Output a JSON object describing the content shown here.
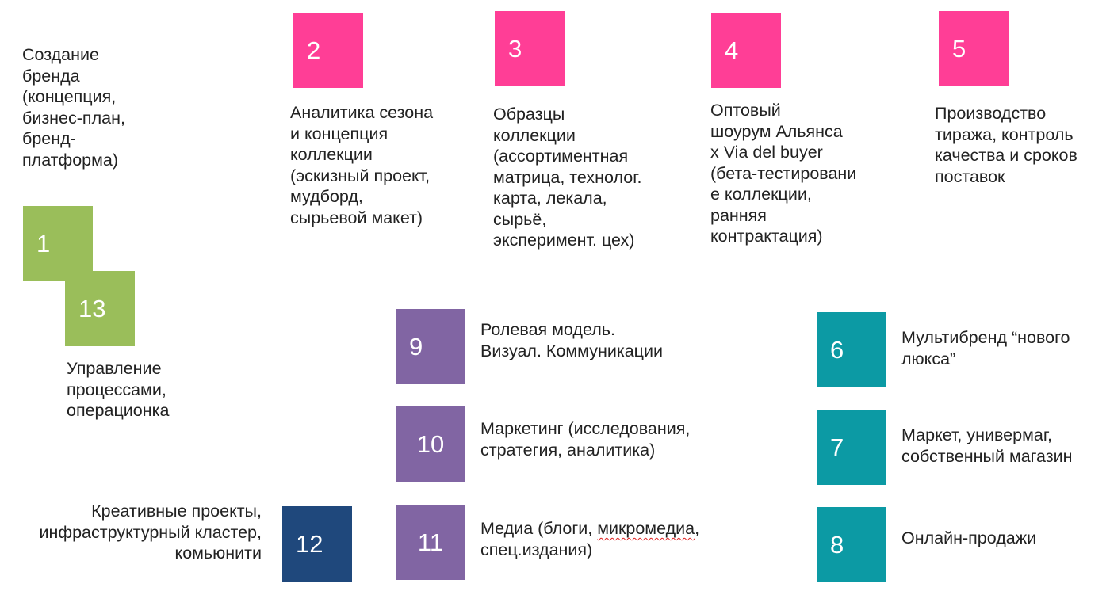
{
  "steps": [
    {
      "number": "1",
      "text": "Создание\nбренда\n(концепция,\nбизнес-план,\nбренд-\nплатформа)"
    },
    {
      "number": "2",
      "text": "Аналитика сезона\nи концепция\nколлекции\n(эскизный проект,\nмудборд,\nсырьевой макет)"
    },
    {
      "number": "3",
      "text": "Образцы\nколлекции\n(ассортиментная\nматрица, технолог.\nкарта, лекала,\nсырьё,\nэксперимент. цех)"
    },
    {
      "number": "4",
      "text": "Оптовый\nшоурум Альянса\nx Via del buyer\n(бета-тестировани\nе коллекции,\nранняя\nконтрактация)"
    },
    {
      "number": "5",
      "text": "Производство\nтиража, контроль\nкачества и сроков\nпоставок"
    },
    {
      "number": "6",
      "text": "Мультибренд “нового\nлюкса”"
    },
    {
      "number": "7",
      "text": "Маркет, универмаг,\nсобственный магазин"
    },
    {
      "number": "8",
      "text": "Онлайн-продажи"
    },
    {
      "number": "9",
      "text": "Ролевая модель.\nВизуал. Коммуникации"
    },
    {
      "number": "10",
      "text": "Маркетинг (исследования,\nстратегия, аналитика)"
    },
    {
      "number": "11",
      "text_before": "Медиа (блоги, ",
      "text_flagged": "микромедиа",
      "text_after": ",\nспец.издания)"
    },
    {
      "number": "12",
      "text": "Креативные проекты,\nинфраструктурный кластер,\nкомьюнити"
    },
    {
      "number": "13",
      "text": "Управление\nпроцессами,\nоперационка"
    }
  ],
  "colors": {
    "pink": "#ff3e96",
    "green": "#9abe5a",
    "purple": "#8165a3",
    "teal": "#0c9aa4",
    "navy": "#1f487c"
  }
}
